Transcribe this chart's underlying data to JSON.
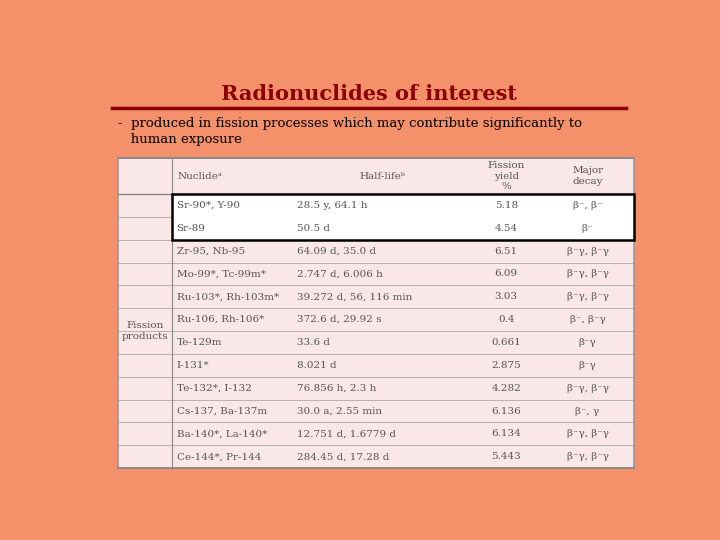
{
  "title": "Radionuclides of interest",
  "subtitle_line1": "-  produced in fission processes which may contribute significantly to",
  "subtitle_line2": "   human exposure",
  "bg_color": "#F4906A",
  "table_bg": "#FAE8E8",
  "title_color": "#8B0000",
  "title_line_color": "#8B0000",
  "text_color": "#555555",
  "header_row": [
    "Nuclideᵃ",
    "Half-lifeᵇ",
    "Fission\nyield\n%",
    "Major\ndecay"
  ],
  "highlight_rows": [
    0,
    1
  ],
  "highlight_color": "#FFFFFF",
  "highlight_border": "#000000",
  "rows": [
    [
      "Sr-90*, Y-90",
      "28.5 y, 64.1 h",
      "5.18",
      "β⁻, β⁻"
    ],
    [
      "Sr-89",
      "50.5 d",
      "4.54",
      "β⁻"
    ],
    [
      "Zr-95, Nb-95",
      "64.09 d, 35.0 d",
      "6.51",
      "β⁻γ, β⁻γ"
    ],
    [
      "Mo-99*, Tc-99m*",
      "2.747 d, 6.006 h",
      "6.09",
      "β⁻γ, β⁻γ"
    ],
    [
      "Ru-103*, Rh-103m*",
      "39.272 d, 56, 116 min",
      "3.03",
      "β⁻γ, β⁻γ"
    ],
    [
      "Ru-106, Rh-106*",
      "372.6 d, 29.92 s",
      "0.4",
      "β⁻, β⁻γ"
    ],
    [
      "Te-129m",
      "33.6 d",
      "0.661",
      "β⁻γ"
    ],
    [
      "I-131*",
      "8.021 d",
      "2.875",
      "β⁻γ"
    ],
    [
      "Te-132*, I-132",
      "76.856 h, 2.3 h",
      "4.282",
      "β⁻γ, β⁻γ"
    ],
    [
      "Cs-137, Ba-137m",
      "30.0 a, 2.55 min",
      "6.136",
      "β⁻, γ"
    ],
    [
      "Ba-140*, La-140*",
      "12.751 d, 1.6779 d",
      "6.134",
      "β⁻γ, β⁻γ"
    ],
    [
      "Ce-144*, Pr-144",
      "284.45 d, 17.28 d",
      "5.443",
      "β⁻γ, β⁻γ"
    ]
  ],
  "row_label": "Fission\nproducts"
}
